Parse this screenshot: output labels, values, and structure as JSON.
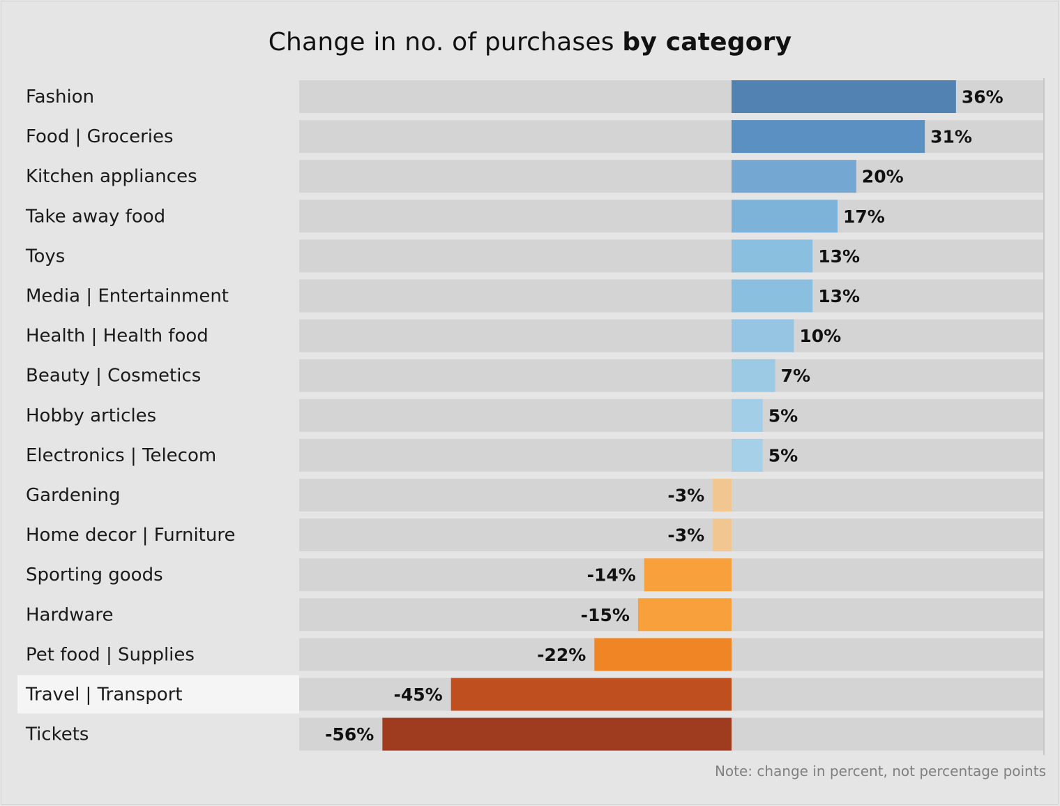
{
  "title_regular": "Change in no. of purchases",
  "title_bold": "by category",
  "note": "Note: change in percent, not percentage points",
  "highlighted_category": "Travel | Transport",
  "chart_data": {
    "type": "bar",
    "orientation": "horizontal",
    "title": "Change in no. of purchases by category",
    "xlim": [
      -0.62,
      0.45
    ],
    "grid": false,
    "categories": [
      "Fashion",
      "Food | Groceries",
      "Kitchen appliances",
      "Take away food",
      "Toys",
      "Media | Entertainment",
      "Health | Health food",
      "Beauty | Cosmetics",
      "Hobby articles",
      "Electronics | Telecom",
      "Gardening",
      "Home decor | Furniture",
      "Sporting goods",
      "Hardware",
      "Pet food | Supplies",
      "Travel | Transport",
      "Tickets"
    ],
    "values": [
      0.36,
      0.31,
      0.2,
      0.17,
      0.13,
      0.13,
      0.1,
      0.07,
      0.05,
      0.05,
      -0.03,
      -0.03,
      -0.14,
      -0.15,
      -0.22,
      -0.45,
      -0.56
    ],
    "labels": [
      "36%",
      "31%",
      "20%",
      "17%",
      "13%",
      "13%",
      "10%",
      "7%",
      "5%",
      "5%",
      "-3%",
      "-3%",
      "-14%",
      "-15%",
      "-22%",
      "-45%",
      "-56%"
    ],
    "colors": [
      "#5282b2",
      "#5b90c2",
      "#74a8d3",
      "#7db3d9",
      "#8abfe0",
      "#8abfe0",
      "#95c5e2",
      "#9ccae5",
      "#a2cee7",
      "#a5d0e8",
      "#f2c690",
      "#f2c690",
      "#f8a03c",
      "#f8a03c",
      "#f08526",
      "#bf4f1f",
      "#9f3b1f"
    ]
  }
}
